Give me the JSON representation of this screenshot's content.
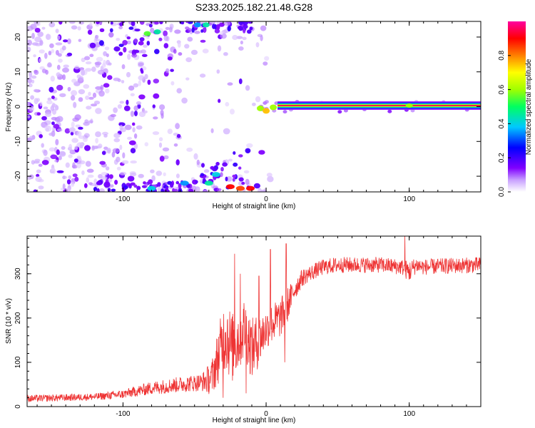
{
  "figure_title": "S233.2025.182.21.48.G28",
  "chart_data": [
    {
      "type": "heatmap",
      "title": "S233.2025.182.21.48.G28",
      "xlabel": "Height of straight line (km)",
      "ylabel": "Frequency (Hz)",
      "xlim": [
        -167,
        150
      ],
      "ylim": [
        -24.5,
        24.5
      ],
      "x_ticks": [
        -100,
        0,
        100
      ],
      "y_ticks": [
        -20,
        -10,
        0,
        10,
        20
      ],
      "x_tick_labels": [
        "-100",
        "0",
        "100"
      ],
      "y_tick_labels": [
        "-20",
        "-10",
        "0",
        "10",
        "20"
      ],
      "colorbar": {
        "label": "Normalized spectral amplitude",
        "range": [
          0,
          1
        ],
        "ticks": [
          "0.0",
          "0.2",
          "0.4",
          "0.6",
          "0.8"
        ],
        "tick_values": [
          0.0,
          0.2,
          0.4,
          0.6,
          0.8
        ],
        "colormap": [
          "#ffffff",
          "#c8a0ff",
          "#8000ff",
          "#0000ff",
          "#00c8ff",
          "#00ff60",
          "#a0ff00",
          "#ffff00",
          "#ff8000",
          "#ff0000",
          "#ff00a0"
        ]
      },
      "features": {
        "strong_line": {
          "frequency_hz": 0.3,
          "x_range": [
            8,
            150
          ],
          "amplitude": 0.95
        },
        "line_onset_blobs": [
          {
            "x": -4,
            "y": -0.5,
            "amp": 0.6
          },
          {
            "x": 0,
            "y": -1.2,
            "amp": 0.75
          },
          {
            "x": 5,
            "y": -0.2,
            "amp": 0.6
          }
        ],
        "bottom_strong_blobs": [
          {
            "x": -25,
            "y": -23,
            "amp": 0.9
          },
          {
            "x": -18,
            "y": -23.5,
            "amp": 0.85
          },
          {
            "x": -11,
            "y": -23.5,
            "amp": 0.9
          },
          {
            "x": -40,
            "y": -22,
            "amp": 0.45
          },
          {
            "x": -35,
            "y": -19.5,
            "amp": 0.4
          },
          {
            "x": -80,
            "y": -23.5,
            "amp": 0.4
          },
          {
            "x": -57,
            "y": -22,
            "amp": 0.35
          }
        ],
        "top_strong_blobs": [
          {
            "x": -83,
            "y": 21,
            "amp": 0.55
          },
          {
            "x": -76,
            "y": 21.5,
            "amp": 0.45
          },
          {
            "x": -48,
            "y": 23.5,
            "amp": 0.35
          },
          {
            "x": -42,
            "y": 23.5,
            "amp": 0.45
          }
        ]
      }
    },
    {
      "type": "line",
      "xlabel": "Height of straight line (km)",
      "ylabel": "SNR (10 * v/v)",
      "xlim": [
        -167,
        150
      ],
      "ylim": [
        0,
        385
      ],
      "x_ticks": [
        -100,
        0,
        100
      ],
      "y_ticks": [
        0,
        100,
        200,
        300
      ],
      "x_tick_labels": [
        "-100",
        "0",
        "100"
      ],
      "y_tick_labels": [
        "0",
        "100",
        "200",
        "300"
      ],
      "color": "#ee3333",
      "envelope": {
        "x": [
          -167,
          -120,
          -100,
          -80,
          -60,
          -45,
          -38,
          -32,
          -28,
          -24,
          -20,
          -15,
          -10,
          -5,
          0,
          5,
          10,
          15,
          20,
          25,
          30,
          40,
          50,
          60,
          80,
          95,
          100,
          105,
          110,
          130,
          150
        ],
        "y": [
          18,
          22,
          28,
          42,
          50,
          55,
          65,
          130,
          170,
          130,
          150,
          180,
          130,
          150,
          175,
          190,
          200,
          230,
          265,
          290,
          300,
          315,
          320,
          320,
          320,
          315,
          305,
          320,
          315,
          318,
          320
        ],
        "noise_amplitude": [
          8,
          8,
          10,
          15,
          18,
          20,
          40,
          70,
          90,
          80,
          80,
          70,
          70,
          60,
          45,
          45,
          45,
          40,
          25,
          20,
          18,
          18,
          18,
          18,
          18,
          18,
          25,
          18,
          18,
          18,
          18
        ]
      },
      "spikes": [
        {
          "x": -22,
          "y": 345
        },
        {
          "x": -18,
          "y": 300
        },
        {
          "x": -14,
          "y": 30
        },
        {
          "x": 3,
          "y": 355
        },
        {
          "x": 14,
          "y": 368
        },
        {
          "x": 97,
          "y": 385
        },
        {
          "x": -30,
          "y": 20
        },
        {
          "x": -5,
          "y": 295
        },
        {
          "x": 13,
          "y": 100
        }
      ]
    }
  ]
}
